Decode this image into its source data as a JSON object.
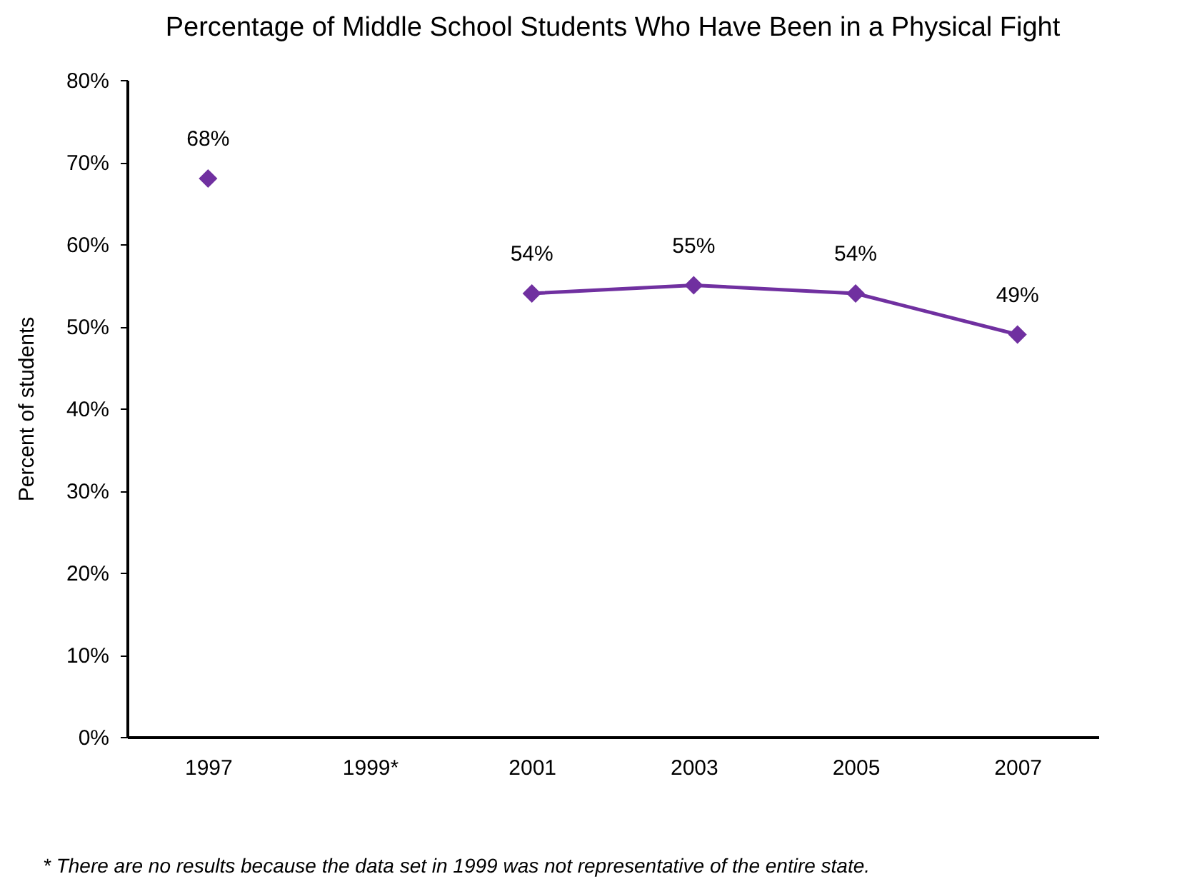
{
  "chart_data": {
    "type": "line",
    "title": "Percentage of Middle School Students Who Have Been in a Physical Fight",
    "ylabel": "Percent of students",
    "categories": [
      "1997",
      "1999*",
      "2001",
      "2003",
      "2005",
      "2007"
    ],
    "series": [
      {
        "color": "#7030a0",
        "values": [
          68,
          null,
          54,
          55,
          54,
          49
        ],
        "value_labels": [
          "68%",
          null,
          "54%",
          "55%",
          "54%",
          "49%"
        ]
      }
    ],
    "ylim": [
      0,
      80
    ],
    "yticks": [
      {
        "value": 0,
        "label": "0%"
      },
      {
        "value": 10,
        "label": "10%"
      },
      {
        "value": 20,
        "label": "20%"
      },
      {
        "value": 30,
        "label": "30%"
      },
      {
        "value": 40,
        "label": "40%"
      },
      {
        "value": 50,
        "label": "50%"
      },
      {
        "value": 60,
        "label": "60%"
      },
      {
        "value": 70,
        "label": "70%"
      },
      {
        "value": 80,
        "label": "80%"
      }
    ],
    "marker": "diamond",
    "line_style": "solid",
    "grid": false,
    "legend": false,
    "annotations": [
      "* There are no results because the data set in 1999 was not representative of the entire state."
    ]
  }
}
